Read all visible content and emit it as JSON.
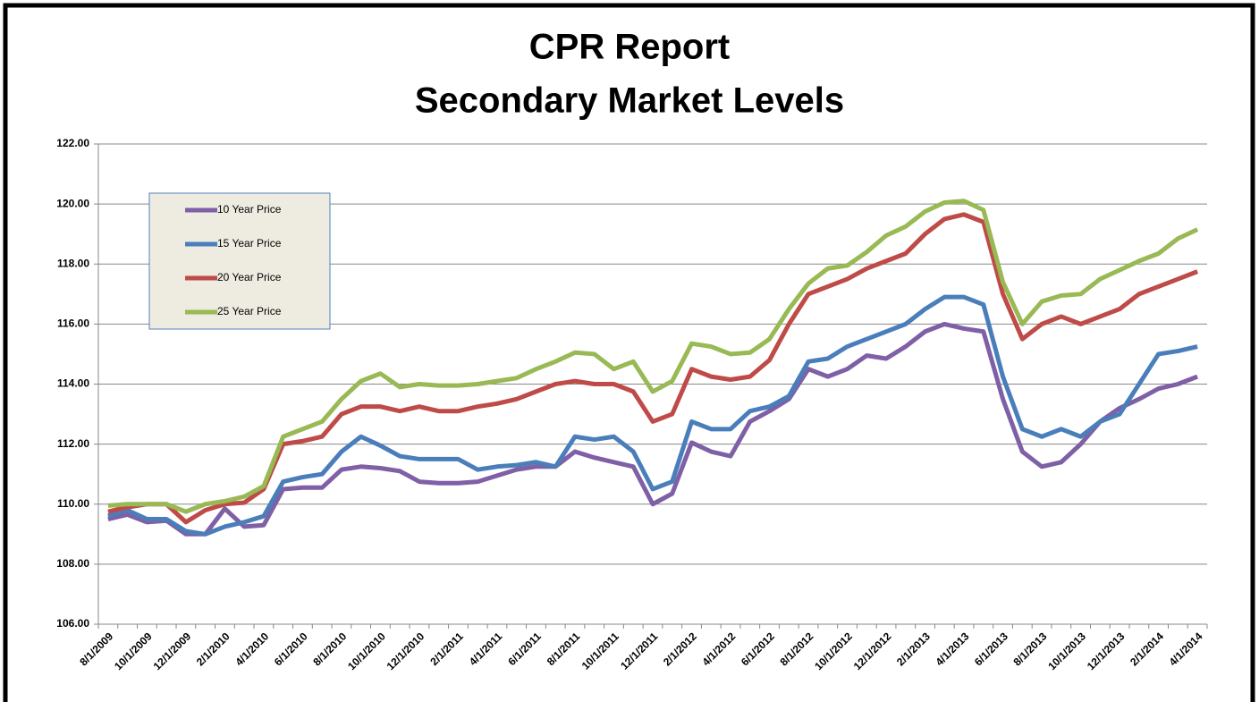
{
  "chart_data": {
    "type": "line",
    "title": "CPR Report",
    "subtitle": "Secondary Market Levels",
    "categories": [
      "8/1/2009",
      null,
      "10/1/2009",
      null,
      "12/1/2009",
      null,
      "2/1/2010",
      null,
      "4/1/2010",
      null,
      "6/1/2010",
      null,
      "8/1/2010",
      null,
      "10/1/2010",
      null,
      "12/1/2010",
      null,
      "2/1/2011",
      null,
      "4/1/2011",
      null,
      "6/1/2011",
      null,
      "8/1/2011",
      null,
      "10/1/2011",
      null,
      "12/1/2011",
      null,
      "2/1/2012",
      null,
      "4/1/2012",
      null,
      "6/1/2012",
      null,
      "8/1/2012",
      null,
      "10/1/2012",
      null,
      "12/1/2012",
      null,
      "2/1/2013",
      null,
      "4/1/2013",
      null,
      "6/1/2013",
      null,
      "8/1/2013",
      null,
      "10/1/2013",
      null,
      "12/1/2013",
      null,
      "2/1/2014",
      null,
      "4/1/2014"
    ],
    "series": [
      {
        "name": "10 Year Price",
        "color": "#7f5fa6",
        "values": [
          109.5,
          109.65,
          109.4,
          109.45,
          109.0,
          109.0,
          109.85,
          109.25,
          109.3,
          110.5,
          110.55,
          110.55,
          111.15,
          111.25,
          111.2,
          111.1,
          110.75,
          110.7,
          110.7,
          110.75,
          110.95,
          111.15,
          111.25,
          111.25,
          111.75,
          111.55,
          111.4,
          111.25,
          110.0,
          110.35,
          112.05,
          111.75,
          111.6,
          112.75,
          113.1,
          113.5,
          114.5,
          114.25,
          114.5,
          114.95,
          114.85,
          115.25,
          115.75,
          116.0,
          115.85,
          115.75,
          113.5,
          111.75,
          111.25,
          111.4,
          112.0,
          112.75,
          113.2,
          113.5,
          113.85,
          114.0,
          114.25
        ]
      },
      {
        "name": "15 Year Price",
        "color": "#4a7ebb",
        "values": [
          109.6,
          109.8,
          109.5,
          109.5,
          109.1,
          109.0,
          109.25,
          109.4,
          109.6,
          110.75,
          110.9,
          111.0,
          111.75,
          112.25,
          111.95,
          111.6,
          111.5,
          111.5,
          111.5,
          111.15,
          111.25,
          111.3,
          111.4,
          111.25,
          112.25,
          112.15,
          112.25,
          111.75,
          110.5,
          110.75,
          112.75,
          112.5,
          112.5,
          113.1,
          113.25,
          113.6,
          114.75,
          114.85,
          115.25,
          115.5,
          115.75,
          116.0,
          116.5,
          116.9,
          116.9,
          116.65,
          114.25,
          112.5,
          112.25,
          112.5,
          112.25,
          112.75,
          113.0,
          114.0,
          115.0,
          115.1,
          115.25
        ]
      },
      {
        "name": "20 Year Price",
        "color": "#be4b48",
        "values": [
          109.75,
          109.9,
          110.0,
          110.0,
          109.4,
          109.8,
          110.0,
          110.05,
          110.5,
          112.0,
          112.1,
          112.25,
          113.0,
          113.25,
          113.25,
          113.1,
          113.25,
          113.1,
          113.1,
          113.25,
          113.35,
          113.5,
          113.75,
          114.0,
          114.1,
          114.0,
          114.0,
          113.75,
          112.75,
          113.0,
          114.5,
          114.25,
          114.15,
          114.25,
          114.8,
          116.0,
          117.0,
          117.25,
          117.5,
          117.85,
          118.1,
          118.35,
          119.0,
          119.5,
          119.65,
          119.4,
          117.0,
          115.5,
          116.0,
          116.25,
          116.0,
          116.25,
          116.5,
          117.0,
          117.25,
          117.5,
          117.75
        ]
      },
      {
        "name": "25 Year Price",
        "color": "#98b954",
        "values": [
          109.95,
          110.0,
          110.0,
          110.0,
          109.75,
          110.0,
          110.1,
          110.25,
          110.6,
          112.25,
          112.5,
          112.75,
          113.5,
          114.1,
          114.35,
          113.9,
          114.0,
          113.95,
          113.95,
          114.0,
          114.1,
          114.2,
          114.5,
          114.75,
          115.05,
          115.0,
          114.5,
          114.75,
          113.75,
          114.1,
          115.35,
          115.25,
          115.0,
          115.05,
          115.5,
          116.5,
          117.35,
          117.85,
          117.95,
          118.4,
          118.95,
          119.25,
          119.75,
          120.05,
          120.1,
          119.8,
          117.4,
          116.0,
          116.75,
          116.95,
          117.0,
          117.5,
          117.8,
          118.1,
          118.35,
          118.85,
          119.15
        ]
      }
    ],
    "ylim": [
      106,
      122
    ],
    "yticks": [
      {
        "value": 106,
        "label": "106.00"
      },
      {
        "value": 108,
        "label": "108.00"
      },
      {
        "value": 110,
        "label": "110.00"
      },
      {
        "value": 112,
        "label": "112.00"
      },
      {
        "value": 114,
        "label": "114.00"
      },
      {
        "value": 116,
        "label": "116.00"
      },
      {
        "value": 118,
        "label": "118.00"
      },
      {
        "value": 120,
        "label": "120.00"
      },
      {
        "value": 122,
        "label": "122.00"
      }
    ],
    "grid": true,
    "legend": "upper left"
  }
}
